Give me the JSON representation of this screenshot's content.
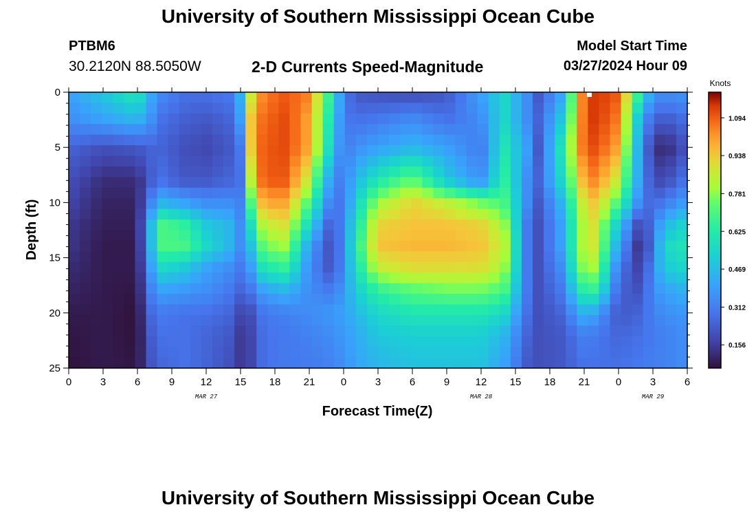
{
  "header": {
    "title": "University of Southern Mississippi Ocean Cube",
    "station": "PTBM6",
    "coords": "30.2120N  88.5050W",
    "subtitle": "2-D Currents Speed-Magnitude",
    "model_start_label": "Model Start Time",
    "model_start_value": "03/27/2024 Hour 09"
  },
  "footer": {
    "title": "University of Southern Mississippi Ocean Cube"
  },
  "chart_data": {
    "type": "heatmap",
    "title": "2-D Currents Speed-Magnitude",
    "xlabel": "Forecast Time(Z)",
    "ylabel": "Depth (ft)",
    "x_tick_labels": [
      "0",
      "3",
      "6",
      "9",
      "12",
      "15",
      "18",
      "21",
      "0",
      "3",
      "6",
      "9",
      "12",
      "15",
      "18",
      "21",
      "0",
      "3",
      "6"
    ],
    "x_range_hours": [
      0,
      54
    ],
    "date_labels": [
      {
        "text": "MAR 27",
        "hour": 12
      },
      {
        "text": "MAR 28",
        "hour": 36
      },
      {
        "text": "MAR 29",
        "hour": 51
      }
    ],
    "y_ticks": [
      0,
      5,
      10,
      15,
      20,
      25
    ],
    "y_range_ft": [
      0,
      25
    ],
    "colorbar": {
      "title": "Knots",
      "ticks": [
        0.156,
        0.312,
        0.469,
        0.625,
        0.781,
        0.938,
        1.094
      ],
      "range": [
        0.06,
        1.2
      ]
    },
    "grid": {
      "hours": [
        0,
        3,
        6,
        7,
        8,
        10,
        12,
        14,
        15,
        16,
        17,
        19,
        21,
        23,
        24,
        25,
        27,
        30,
        33,
        36,
        38,
        40,
        41,
        43,
        45,
        46,
        48,
        50,
        51,
        52,
        54
      ],
      "depths": [
        0,
        2.5,
        5,
        8,
        10,
        12,
        14,
        16,
        18,
        20,
        22,
        25
      ],
      "values": [
        [
          0.4,
          0.5,
          0.62,
          0.45,
          0.35,
          0.28,
          0.28,
          0.3,
          0.45,
          0.9,
          1.05,
          1.1,
          1.05,
          0.6,
          0.32,
          0.22,
          0.2,
          0.18,
          0.22,
          0.4,
          0.55,
          0.35,
          0.22,
          0.4,
          1.1,
          1.15,
          1.1,
          0.6,
          0.38,
          0.35,
          0.38
        ],
        [
          0.35,
          0.4,
          0.45,
          0.38,
          0.28,
          0.24,
          0.22,
          0.25,
          0.4,
          1.0,
          1.08,
          1.12,
          1.0,
          0.55,
          0.3,
          0.28,
          0.3,
          0.35,
          0.28,
          0.35,
          0.55,
          0.35,
          0.25,
          0.5,
          1.1,
          1.15,
          1.05,
          0.4,
          0.25,
          0.22,
          0.28
        ],
        [
          0.25,
          0.2,
          0.22,
          0.25,
          0.25,
          0.2,
          0.18,
          0.22,
          0.3,
          1.0,
          1.1,
          1.12,
          1.0,
          0.5,
          0.3,
          0.35,
          0.4,
          0.45,
          0.4,
          0.3,
          0.6,
          0.4,
          0.22,
          0.6,
          1.1,
          1.12,
          1.0,
          0.35,
          0.15,
          0.1,
          0.22
        ],
        [
          0.2,
          0.12,
          0.12,
          0.22,
          0.28,
          0.22,
          0.22,
          0.25,
          0.28,
          0.9,
          1.1,
          1.1,
          0.85,
          0.35,
          0.3,
          0.45,
          0.6,
          0.75,
          0.5,
          0.35,
          0.65,
          0.35,
          0.25,
          0.55,
          1.0,
          1.05,
          0.85,
          0.35,
          0.2,
          0.18,
          0.3
        ],
        [
          0.18,
          0.1,
          0.1,
          0.3,
          0.45,
          0.4,
          0.35,
          0.35,
          0.32,
          0.75,
          1.0,
          1.0,
          0.7,
          0.28,
          0.3,
          0.5,
          0.8,
          0.92,
          0.85,
          0.75,
          0.7,
          0.35,
          0.22,
          0.45,
          0.9,
          0.95,
          0.7,
          0.3,
          0.25,
          0.3,
          0.4
        ],
        [
          0.15,
          0.09,
          0.09,
          0.4,
          0.7,
          0.65,
          0.5,
          0.45,
          0.35,
          0.6,
          0.85,
          0.9,
          0.55,
          0.2,
          0.35,
          0.55,
          0.92,
          0.95,
          0.95,
          0.92,
          0.8,
          0.3,
          0.2,
          0.4,
          0.85,
          0.9,
          0.5,
          0.15,
          0.3,
          0.45,
          0.55
        ],
        [
          0.14,
          0.08,
          0.08,
          0.4,
          0.7,
          0.7,
          0.55,
          0.45,
          0.35,
          0.5,
          0.75,
          0.8,
          0.4,
          0.18,
          0.35,
          0.6,
          0.95,
          0.97,
          0.97,
          0.95,
          0.85,
          0.3,
          0.2,
          0.4,
          0.85,
          0.88,
          0.4,
          0.1,
          0.3,
          0.55,
          0.6
        ],
        [
          0.12,
          0.08,
          0.08,
          0.35,
          0.55,
          0.5,
          0.4,
          0.35,
          0.3,
          0.4,
          0.6,
          0.65,
          0.35,
          0.2,
          0.35,
          0.55,
          0.85,
          0.9,
          0.9,
          0.9,
          0.8,
          0.3,
          0.2,
          0.35,
          0.8,
          0.8,
          0.3,
          0.15,
          0.35,
          0.5,
          0.55
        ],
        [
          0.1,
          0.08,
          0.07,
          0.3,
          0.4,
          0.38,
          0.35,
          0.3,
          0.25,
          0.3,
          0.4,
          0.45,
          0.35,
          0.3,
          0.38,
          0.5,
          0.65,
          0.72,
          0.75,
          0.75,
          0.7,
          0.3,
          0.2,
          0.3,
          0.65,
          0.65,
          0.25,
          0.2,
          0.35,
          0.4,
          0.45
        ],
        [
          0.08,
          0.08,
          0.06,
          0.25,
          0.3,
          0.28,
          0.28,
          0.25,
          0.18,
          0.2,
          0.3,
          0.32,
          0.35,
          0.38,
          0.4,
          0.45,
          0.55,
          0.6,
          0.6,
          0.6,
          0.55,
          0.28,
          0.2,
          0.25,
          0.45,
          0.4,
          0.22,
          0.25,
          0.32,
          0.35,
          0.38
        ],
        [
          0.07,
          0.08,
          0.06,
          0.22,
          0.28,
          0.28,
          0.25,
          0.22,
          0.15,
          0.18,
          0.28,
          0.3,
          0.32,
          0.35,
          0.38,
          0.42,
          0.5,
          0.52,
          0.52,
          0.52,
          0.45,
          0.25,
          0.2,
          0.22,
          0.32,
          0.3,
          0.25,
          0.28,
          0.3,
          0.32,
          0.35
        ],
        [
          0.06,
          0.08,
          0.07,
          0.2,
          0.25,
          0.28,
          0.25,
          0.2,
          0.15,
          0.18,
          0.28,
          0.3,
          0.3,
          0.32,
          0.35,
          0.4,
          0.45,
          0.48,
          0.48,
          0.48,
          0.4,
          0.22,
          0.2,
          0.22,
          0.28,
          0.28,
          0.28,
          0.3,
          0.32,
          0.32,
          0.35
        ]
      ]
    }
  }
}
